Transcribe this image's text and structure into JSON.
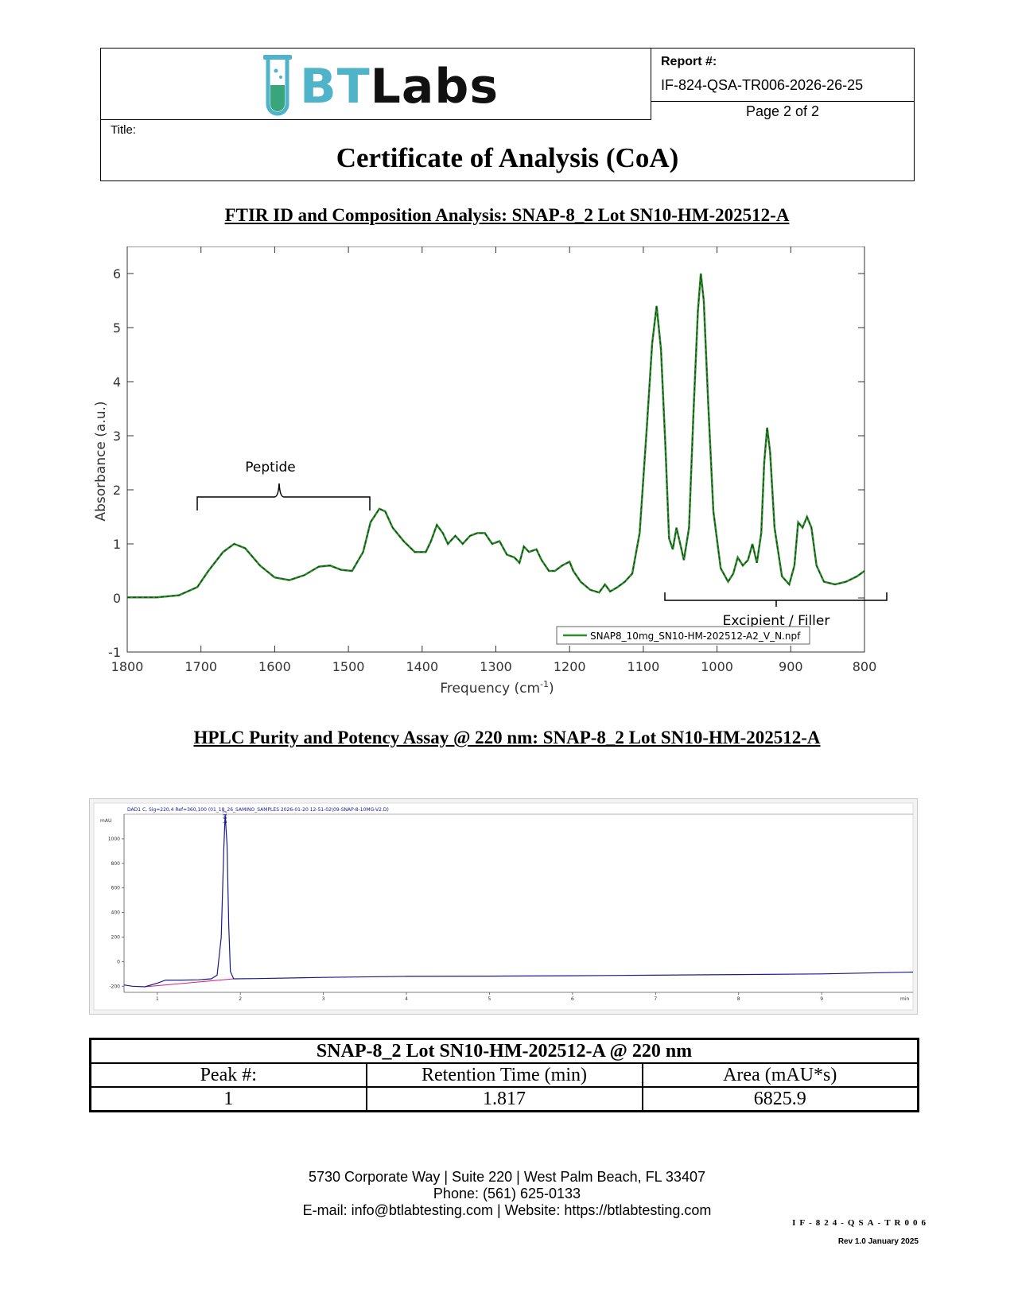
{
  "header": {
    "logo_bt": "BT",
    "logo_labs": "Labs",
    "report_label": "Report #:",
    "report_number": "IF-824-QSA-TR006-2026-26-25",
    "page": "Page 2 of 2",
    "title_label": "Title:",
    "title": "Certificate of Analysis (CoA)"
  },
  "ftir": {
    "heading": "FTIR ID and Composition Analysis: SNAP-8_2 Lot SN10-HM-202512-A",
    "annotation_peptide": "Peptide",
    "annotation_excipient": "Excipient / Filler"
  },
  "hplc": {
    "heading": "HPLC Purity and Potency Assay @ 220 nm: SNAP-8_2 Lot SN10-HM-202512-A",
    "signal_label": "DAD1 C, Sig=220,4 Ref=360,100 (01_18_26_SAMINO_SAMPLES 2026-01-20 12-51-02\\09-SNAP-8-10MG-V2.D)",
    "peak_label": "1.817"
  },
  "results_table": {
    "caption": "SNAP-8_2 Lot SN10-HM-202512-A @ 220 nm",
    "headers": [
      "Peak #:",
      "Retention Time (min)",
      "Area (mAU*s)"
    ],
    "rows": [
      [
        "1",
        "1.817",
        "6825.9"
      ]
    ]
  },
  "footer": {
    "address": "5730 Corporate Way | Suite 220 | West Palm Beach, FL 33407",
    "phone": "Phone: (561) 625-0133",
    "contact": "E-mail: info@btlabtesting.com | Website: https://btlabtesting.com",
    "doc_id": "IF-824-QSA-TR006",
    "revision": "Rev 1.0 January 2025"
  },
  "chart_data": [
    {
      "type": "line",
      "title": "",
      "xlabel": "Frequency (cm-1)",
      "ylabel": "Absorbance (a.u.)",
      "xlim": [
        1800,
        800
      ],
      "ylim": [
        -1,
        6.5
      ],
      "x_ticks": [
        1800,
        1700,
        1600,
        1500,
        1400,
        1300,
        1200,
        1100,
        1000,
        900,
        800
      ],
      "y_ticks": [
        -1,
        0,
        1,
        2,
        3,
        4,
        5,
        6
      ],
      "legend_position": "bottom-right",
      "color": "#2e8b2e",
      "series": [
        {
          "name": "SNAP8_10mg_SN10-HM-202512-A2_V_N.npf",
          "points": [
            [
              1800,
              0.01
            ],
            [
              1760,
              0.01
            ],
            [
              1730,
              0.05
            ],
            [
              1705,
              0.2
            ],
            [
              1690,
              0.5
            ],
            [
              1670,
              0.85
            ],
            [
              1655,
              1.0
            ],
            [
              1640,
              0.92
            ],
            [
              1620,
              0.6
            ],
            [
              1600,
              0.38
            ],
            [
              1580,
              0.33
            ],
            [
              1560,
              0.42
            ],
            [
              1540,
              0.58
            ],
            [
              1525,
              0.6
            ],
            [
              1510,
              0.52
            ],
            [
              1495,
              0.5
            ],
            [
              1480,
              0.85
            ],
            [
              1470,
              1.4
            ],
            [
              1458,
              1.65
            ],
            [
              1450,
              1.6
            ],
            [
              1440,
              1.3
            ],
            [
              1425,
              1.05
            ],
            [
              1410,
              0.85
            ],
            [
              1395,
              0.85
            ],
            [
              1388,
              1.05
            ],
            [
              1380,
              1.35
            ],
            [
              1372,
              1.2
            ],
            [
              1365,
              1.0
            ],
            [
              1355,
              1.15
            ],
            [
              1345,
              1.0
            ],
            [
              1335,
              1.15
            ],
            [
              1325,
              1.2
            ],
            [
              1315,
              1.2
            ],
            [
              1305,
              1.0
            ],
            [
              1295,
              1.05
            ],
            [
              1285,
              0.8
            ],
            [
              1275,
              0.75
            ],
            [
              1268,
              0.65
            ],
            [
              1262,
              0.95
            ],
            [
              1255,
              0.85
            ],
            [
              1245,
              0.9
            ],
            [
              1238,
              0.7
            ],
            [
              1228,
              0.5
            ],
            [
              1220,
              0.5
            ],
            [
              1210,
              0.6
            ],
            [
              1200,
              0.67
            ],
            [
              1195,
              0.5
            ],
            [
              1185,
              0.3
            ],
            [
              1172,
              0.15
            ],
            [
              1160,
              0.1
            ],
            [
              1152,
              0.25
            ],
            [
              1145,
              0.12
            ],
            [
              1135,
              0.2
            ],
            [
              1125,
              0.3
            ],
            [
              1115,
              0.45
            ],
            [
              1105,
              1.2
            ],
            [
              1095,
              3.2
            ],
            [
              1088,
              4.7
            ],
            [
              1082,
              5.4
            ],
            [
              1076,
              4.6
            ],
            [
              1070,
              2.8
            ],
            [
              1065,
              1.1
            ],
            [
              1060,
              0.9
            ],
            [
              1055,
              1.3
            ],
            [
              1050,
              1.0
            ],
            [
              1045,
              0.7
            ],
            [
              1038,
              1.3
            ],
            [
              1032,
              3.4
            ],
            [
              1026,
              5.3
            ],
            [
              1022,
              6.0
            ],
            [
              1018,
              5.5
            ],
            [
              1012,
              3.6
            ],
            [
              1005,
              1.6
            ],
            [
              995,
              0.55
            ],
            [
              985,
              0.3
            ],
            [
              978,
              0.45
            ],
            [
              972,
              0.75
            ],
            [
              965,
              0.6
            ],
            [
              958,
              0.7
            ],
            [
              952,
              1.0
            ],
            [
              946,
              0.65
            ],
            [
              940,
              1.2
            ],
            [
              936,
              2.5
            ],
            [
              932,
              3.15
            ],
            [
              928,
              2.7
            ],
            [
              922,
              1.3
            ],
            [
              912,
              0.4
            ],
            [
              902,
              0.25
            ],
            [
              895,
              0.6
            ],
            [
              890,
              1.4
            ],
            [
              884,
              1.3
            ],
            [
              878,
              1.5
            ],
            [
              872,
              1.3
            ],
            [
              865,
              0.6
            ],
            [
              855,
              0.3
            ],
            [
              840,
              0.25
            ],
            [
              825,
              0.3
            ],
            [
              810,
              0.4
            ],
            [
              800,
              0.5
            ]
          ]
        }
      ]
    },
    {
      "type": "line",
      "title": "",
      "xlabel": "min",
      "ylabel": "mAU",
      "xlim": [
        0.6,
        10.1
      ],
      "ylim": [
        -250,
        1200
      ],
      "x_ticks": [
        1,
        2,
        3,
        4,
        5,
        6,
        7,
        8,
        9
      ],
      "y_ticks": [
        -200,
        0,
        200,
        400,
        600,
        800,
        1000
      ],
      "color": "#1a1a8a",
      "series": [
        {
          "name": "DAD1 C, Sig=220,4 Ref=360,100",
          "points": [
            [
              0.6,
              -190
            ],
            [
              0.7,
              -200
            ],
            [
              0.85,
              -205
            ],
            [
              1.0,
              -175
            ],
            [
              1.1,
              -150
            ],
            [
              1.3,
              -150
            ],
            [
              1.5,
              -148
            ],
            [
              1.65,
              -140
            ],
            [
              1.72,
              -110
            ],
            [
              1.77,
              200
            ],
            [
              1.8,
              900
            ],
            [
              1.817,
              1200
            ],
            [
              1.84,
              950
            ],
            [
              1.86,
              300
            ],
            [
              1.88,
              -80
            ],
            [
              1.92,
              -140
            ],
            [
              2.2,
              -138
            ],
            [
              3.0,
              -128
            ],
            [
              4.0,
              -120
            ],
            [
              5.0,
              -118
            ],
            [
              6.0,
              -115
            ],
            [
              7.0,
              -110
            ],
            [
              8.0,
              -105
            ],
            [
              9.0,
              -100
            ],
            [
              10.1,
              -85
            ]
          ]
        }
      ],
      "baseline": {
        "name": "baseline",
        "color": "#d02090",
        "points": [
          [
            0.85,
            -205
          ],
          [
            1.92,
            -140
          ]
        ]
      }
    }
  ]
}
